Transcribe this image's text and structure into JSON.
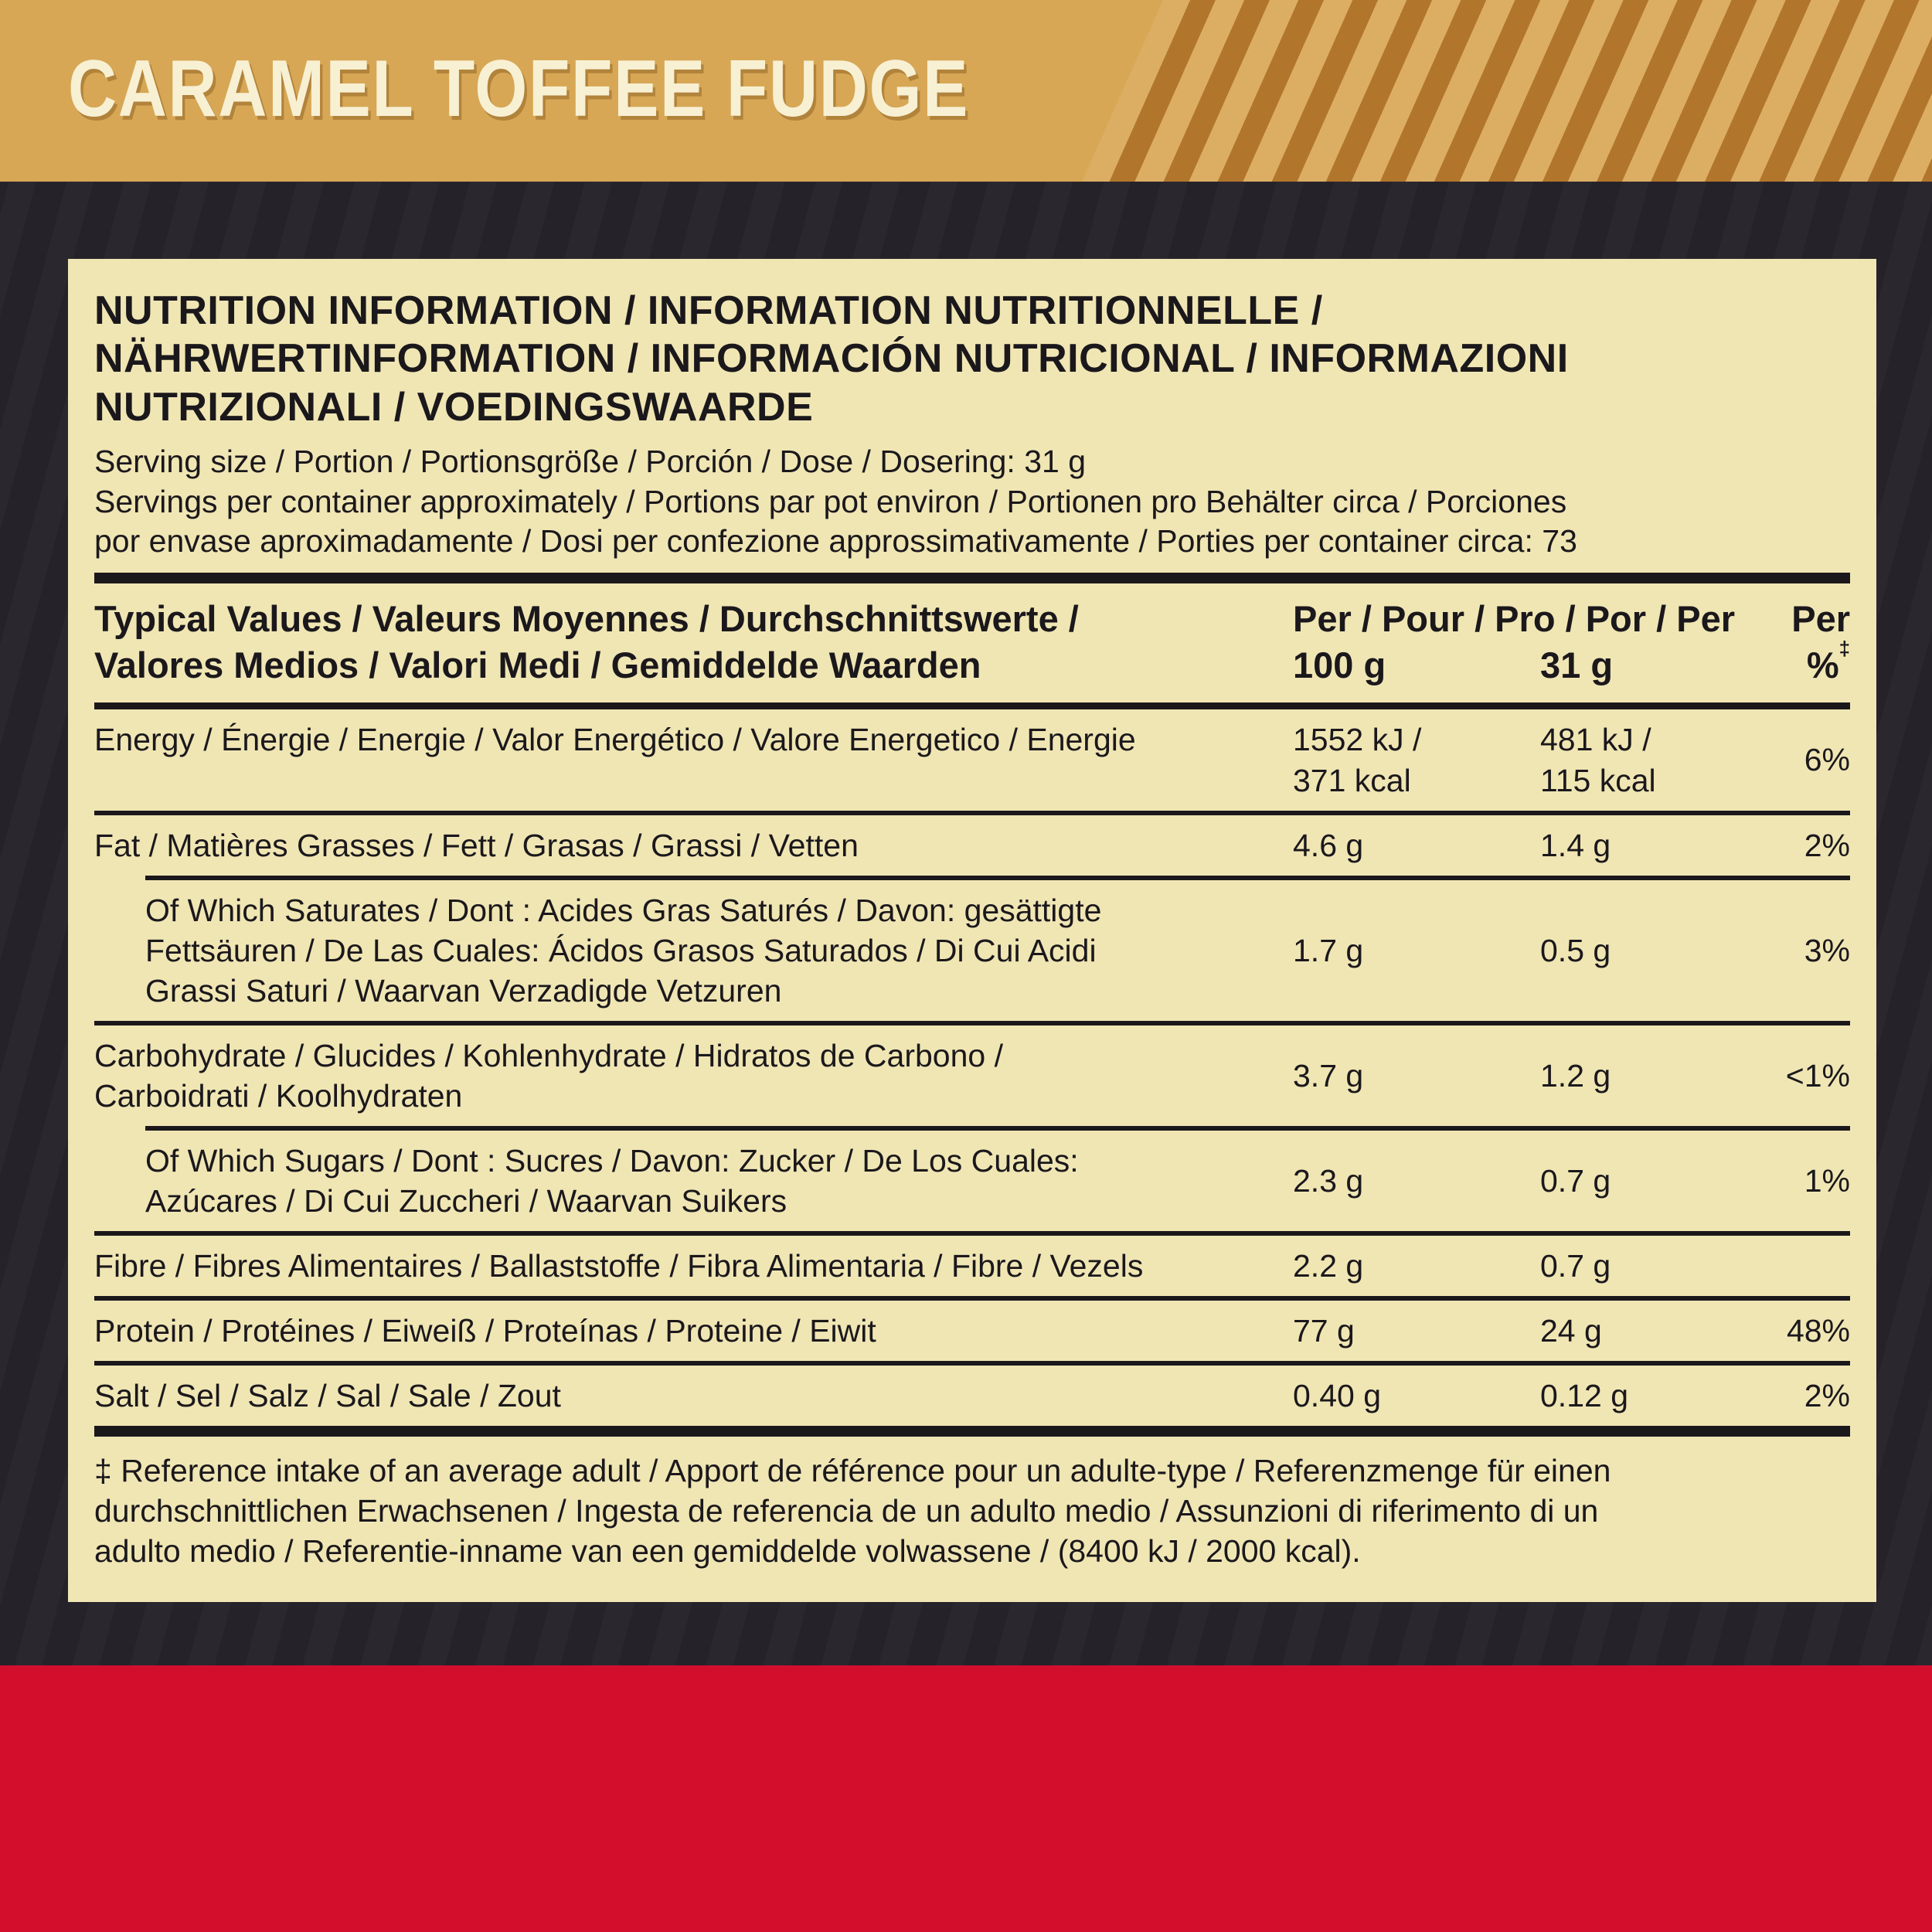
{
  "colors": {
    "gold": "#D7A755",
    "gold_stripe_dark": "#B1762C",
    "gold_stripe_light": "#DCAE63",
    "dark": "#262229",
    "dark_stripe": "#2B272E",
    "red": "#D20E2C",
    "cream": "#F0E6B4",
    "ink": "#1B181C",
    "title_color": "#F8F0D3"
  },
  "banner": {
    "title": "CARAMEL TOFFEE FUDGE"
  },
  "panel": {
    "header_lines": [
      "NUTRITION INFORMATION / INFORMATION NUTRITIONNELLE /",
      "NÄHRWERTINFORMATION / INFORMACIÓN NUTRICIONAL / INFORMAZIONI",
      "NUTRIZIONALI / VOEDINGSWAARDE"
    ],
    "serving_lines": [
      "Serving size / Portion / Portionsgröße / Porción / Dose / Dosering: 31 g",
      "Servings per container approximately / Portions par pot environ / Portionen pro Behälter circa / Porciones",
      "por envase aproximadamente / Dosi per confezione approssimativamente / Porties per container circa: 73"
    ],
    "table": {
      "header_label_lines": [
        "Typical Values / Valeurs Moyennes / Durchschnittswerte /",
        "Valores Medios / Valori Medi / Gemiddelde Waarden"
      ],
      "per_header": "Per / Pour / Pro / Por / Per",
      "per_header_last": "Per",
      "col_100": "100 g",
      "col_31": "31 g",
      "col_pct": "%",
      "col_pct_mark": "‡",
      "rows": [
        {
          "label": "Energy / Énergie / Energie / Valor Energético / Valore Energetico / Energie",
          "per100": "1552 kJ /\n371 kcal",
          "per31": "481 kJ /\n115 kcal",
          "pct": "6%"
        },
        {
          "label": "Fat / Matières Grasses / Fett / Grasas / Grassi / Vetten",
          "per100": "4.6 g",
          "per31": "1.4 g",
          "pct": "2%"
        },
        {
          "label_lines": [
            "Of Which Saturates / Dont : Acides Gras Saturés / Davon: gesättigte",
            "Fettsäuren / De Las Cuales: Ácidos Grasos Saturados / Di Cui Acidi",
            "Grassi Saturi / Waarvan Verzadigde Vetzuren"
          ],
          "per100": "1.7 g",
          "per31": "0.5 g",
          "pct": "3%"
        },
        {
          "label_lines": [
            "Carbohydrate / Glucides / Kohlenhydrate / Hidratos de Carbono /",
            "Carboidrati / Koolhydraten"
          ],
          "per100": "3.7 g",
          "per31": "1.2 g",
          "pct": "<1%"
        },
        {
          "label_lines": [
            "Of Which Sugars / Dont : Sucres / Davon: Zucker / De Los Cuales:",
            "Azúcares / Di Cui Zuccheri / Waarvan Suikers"
          ],
          "per100": "2.3 g",
          "per31": "0.7 g",
          "pct": "1%"
        },
        {
          "label": "Fibre / Fibres Alimentaires / Ballaststoffe / Fibra Alimentaria / Fibre / Vezels",
          "per100": "2.2 g",
          "per31": "0.7 g",
          "pct": ""
        },
        {
          "label": "Protein / Protéines / Eiweiß / Proteínas / Proteine / Eiwit",
          "per100": "77 g",
          "per31": "24 g",
          "pct": "48%"
        },
        {
          "label": "Salt / Sel / Salz / Sal / Sale / Zout",
          "per100": "0.40 g",
          "per31": "0.12 g",
          "pct": "2%"
        }
      ]
    },
    "footnote_lines": [
      "‡ Reference intake of an average adult / Apport de référence pour un adulte-type / Referenzmenge für einen",
      "durchschnittlichen Erwachsenen / Ingesta de referencia de un adulto medio / Assunzioni di riferimento di un",
      "adulto medio / Referentie-inname van een gemiddelde volwassene / (8400 kJ / 2000 kcal)."
    ]
  }
}
